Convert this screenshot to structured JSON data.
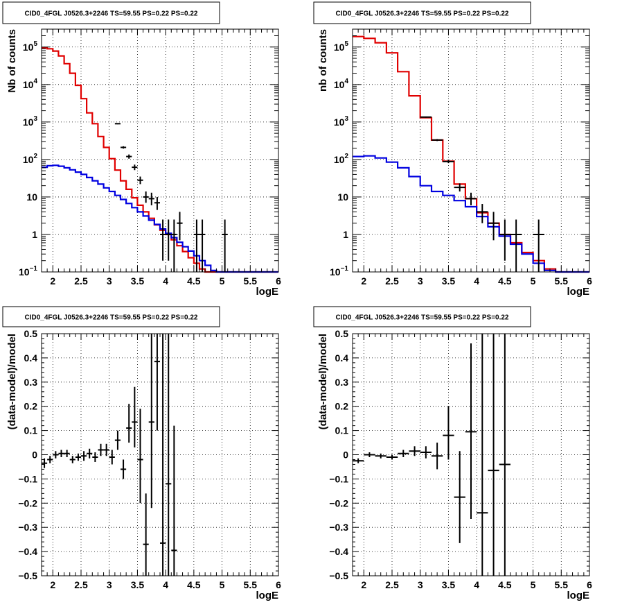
{
  "panels": [
    {
      "title": "CID0_4FGL J0526.3+2246 TS=59.55 PS=0.22 PS=0.22",
      "chart_data": {
        "type": "line",
        "title": "CID0_4FGL J0526.3+2246 TS=59.55 PS=0.22 PS=0.22",
        "xlabel": "logE",
        "ylabel": "Nb of counts",
        "xlim": [
          1.8,
          6.0
        ],
        "ylim": [
          0.1,
          300000
        ],
        "log_y": true,
        "grid": true,
        "xticks": [
          "2",
          "2.5",
          "3",
          "3.5",
          "4",
          "4.5",
          "5",
          "5.5",
          "6"
        ],
        "yticks": [
          {
            "v": 0.1,
            "base": "10",
            "exp": "−1"
          },
          {
            "v": 1,
            "label": "1"
          },
          {
            "v": 10,
            "label": "10"
          },
          {
            "v": 100,
            "base": "10",
            "exp": "2"
          },
          {
            "v": 1000,
            "base": "10",
            "exp": "3"
          },
          {
            "v": 10000,
            "base": "10",
            "exp": "4"
          },
          {
            "v": 100000,
            "base": "10",
            "exp": "5"
          }
        ],
        "bin_width": 0.1,
        "x": [
          1.85,
          1.95,
          2.05,
          2.15,
          2.25,
          2.35,
          2.45,
          2.55,
          2.65,
          2.75,
          2.85,
          2.95,
          3.05,
          3.15,
          3.25,
          3.35,
          3.45,
          3.55,
          3.65,
          3.75,
          3.85,
          3.95,
          4.05,
          4.15,
          4.25,
          4.35,
          4.45,
          4.55,
          4.65,
          4.75,
          4.85,
          4.95,
          5.05,
          5.15,
          5.25,
          5.35,
          5.45,
          5.55,
          5.65,
          5.75,
          5.85,
          5.95
        ],
        "series": [
          {
            "color": "#e00000",
            "kind": "hist",
            "values": [
              95000,
              90000,
              78000,
              58000,
              36000,
              20000,
              9500,
              4200,
              1750,
              900,
              410,
              210,
              105,
              52,
              27,
              16,
              9.5,
              6,
              4,
              2.7,
              1.8,
              1.3,
              1.0,
              0.72,
              0.5,
              0.35,
              0.24,
              0.17,
              0.12,
              0.1,
              0.1,
              0.1,
              0.1,
              0.1,
              0.1,
              0.1,
              0.1,
              0.1,
              0.1,
              0.1,
              0.1,
              0.1
            ]
          },
          {
            "color": "#0000e0",
            "kind": "hist",
            "values": [
              62,
              68,
              70,
              66,
              60,
              53,
              46,
              40,
              33,
              27,
              22,
              17.5,
              14,
              11,
              8.6,
              6.7,
              5.2,
              4.0,
              3.1,
              2.4,
              1.85,
              1.4,
              1.07,
              0.82,
              0.62,
              0.47,
              0.36,
              0.27,
              0.2,
              0.15,
              0.11,
              0.1,
              0.1,
              0.1,
              0.1,
              0.1,
              0.1,
              0.1,
              0.1,
              0.1,
              0.1,
              0.1
            ]
          },
          {
            "color": "#000000",
            "kind": "points",
            "points": [
              [
                3.15,
                900,
                870,
                930
              ],
              [
                3.25,
                210,
                195,
                225
              ],
              [
                3.35,
                120,
                105,
                136
              ],
              [
                3.45,
                62,
                52,
                73
              ],
              [
                3.55,
                28,
                22,
                35
              ],
              [
                3.65,
                10,
                7,
                14
              ],
              [
                3.75,
                9,
                6,
                13
              ],
              [
                3.85,
                7,
                4.5,
                10
              ],
              [
                3.95,
                1,
                0.2,
                2.5
              ],
              [
                4.05,
                1,
                0.2,
                2.5
              ],
              [
                4.15,
                1,
                0.1,
                2.5
              ],
              [
                4.25,
                2,
                0.7,
                4
              ],
              [
                4.55,
                1,
                0.1,
                2.5
              ],
              [
                4.65,
                1,
                0.1,
                2.5
              ],
              [
                5.05,
                1,
                0.1,
                2.5
              ]
            ]
          }
        ]
      }
    },
    {
      "title": "CID0_4FGL J0526.3+2246 TS=59.55 PS=0.22 PS=0.22",
      "chart_data": {
        "type": "line",
        "title": "CID0_4FGL J0526.3+2246 TS=59.55 PS=0.22 PS=0.22",
        "xlabel": "logE",
        "ylabel": "nb of counts",
        "xlim": [
          1.8,
          6.0
        ],
        "ylim": [
          0.1,
          300000
        ],
        "log_y": true,
        "grid": true,
        "xticks": [
          "2",
          "2.5",
          "3",
          "3.5",
          "4",
          "4.5",
          "5",
          "5.5",
          "6"
        ],
        "yticks": [
          {
            "v": 0.1,
            "base": "10",
            "exp": "−1"
          },
          {
            "v": 1,
            "label": "1"
          },
          {
            "v": 10,
            "label": "10"
          },
          {
            "v": 100,
            "base": "10",
            "exp": "2"
          },
          {
            "v": 1000,
            "base": "10",
            "exp": "3"
          },
          {
            "v": 10000,
            "base": "10",
            "exp": "4"
          },
          {
            "v": 100000,
            "base": "10",
            "exp": "5"
          }
        ],
        "bin_width": 0.2,
        "x": [
          1.9,
          2.1,
          2.3,
          2.5,
          2.7,
          2.9,
          3.1,
          3.3,
          3.5,
          3.7,
          3.9,
          4.1,
          4.3,
          4.5,
          4.7,
          4.9,
          5.1,
          5.3,
          5.5,
          5.7,
          5.9
        ],
        "series": [
          {
            "color": "#e00000",
            "kind": "hist",
            "values": [
              190000,
              170000,
              130000,
              70000,
              22000,
              5000,
              1300,
              330,
              90,
              22,
              9,
              3.8,
              2,
              1.0,
              0.6,
              0.33,
              0.2,
              0.12,
              0.1,
              0.1,
              0.1
            ]
          },
          {
            "color": "#0000e0",
            "kind": "hist",
            "values": [
              120,
              125,
              110,
              85,
              60,
              35,
              20,
              14,
              11,
              8,
              5.5,
              3.0,
              1.6,
              0.9,
              0.55,
              0.3,
              0.17,
              0.11,
              0.1,
              0.1,
              0.1
            ]
          },
          {
            "color": "#000000",
            "kind": "points",
            "points": [
              [
                3.1,
                1350,
                1300,
                1400
              ],
              [
                3.3,
                330,
                310,
                350
              ],
              [
                3.5,
                88,
                80,
                96
              ],
              [
                3.7,
                18,
                14,
                23
              ],
              [
                3.9,
                9,
                6,
                13
              ],
              [
                4.1,
                4,
                2,
                6.5
              ],
              [
                4.3,
                2,
                0.7,
                4
              ],
              [
                4.5,
                1,
                0.2,
                2.5
              ],
              [
                4.7,
                1,
                0.1,
                2.5
              ],
              [
                5.1,
                1,
                0.1,
                2.5
              ]
            ]
          }
        ]
      }
    },
    {
      "title": "CID0_4FGL J0526.3+2246 TS=59.55 PS=0.22 PS=0.22",
      "chart_data": {
        "type": "scatter",
        "title": "CID0_4FGL J0526.3+2246 TS=59.55 PS=0.22 PS=0.22",
        "xlabel": "logE",
        "ylabel": "(data-model)/model",
        "xlim": [
          1.8,
          6.0
        ],
        "ylim": [
          -0.5,
          0.5
        ],
        "log_y": false,
        "grid": true,
        "xticks": [
          "2",
          "2.5",
          "3",
          "3.5",
          "4",
          "4.5",
          "5",
          "5.5",
          "6"
        ],
        "yticks": [
          {
            "v": -0.5,
            "label": "−0.5"
          },
          {
            "v": -0.4,
            "label": "−0.4"
          },
          {
            "v": -0.3,
            "label": "−0.3"
          },
          {
            "v": -0.2,
            "label": "−0.2"
          },
          {
            "v": -0.1,
            "label": "−0.1"
          },
          {
            "v": 0,
            "label": "0"
          },
          {
            "v": 0.1,
            "label": "0.1"
          },
          {
            "v": 0.2,
            "label": "0.2"
          },
          {
            "v": 0.3,
            "label": "0.3"
          },
          {
            "v": 0.4,
            "label": "0.4"
          },
          {
            "v": 0.5,
            "label": "0.5"
          }
        ],
        "bin_width": 0.1,
        "series": [
          {
            "color": "#000000",
            "kind": "points",
            "points": [
              [
                1.85,
                -0.035,
                -0.055,
                -0.015
              ],
              [
                1.95,
                -0.02,
                -0.035,
                -0.005
              ],
              [
                2.05,
                0.0,
                -0.015,
                0.015
              ],
              [
                2.15,
                0.005,
                -0.01,
                0.02
              ],
              [
                2.25,
                0.005,
                -0.01,
                0.02
              ],
              [
                2.35,
                -0.02,
                -0.035,
                -0.005
              ],
              [
                2.45,
                -0.01,
                -0.025,
                0.005
              ],
              [
                2.55,
                -0.005,
                -0.025,
                0.015
              ],
              [
                2.65,
                0.005,
                -0.015,
                0.025
              ],
              [
                2.75,
                -0.01,
                -0.03,
                0.01
              ],
              [
                2.85,
                0.02,
                -0.005,
                0.045
              ],
              [
                2.95,
                0.02,
                -0.005,
                0.045
              ],
              [
                3.05,
                -0.01,
                -0.04,
                0.02
              ],
              [
                3.15,
                0.06,
                0.02,
                0.1
              ],
              [
                3.25,
                -0.06,
                -0.1,
                -0.02
              ],
              [
                3.35,
                0.11,
                0.05,
                0.21
              ],
              [
                3.45,
                0.135,
                0.03,
                0.28
              ],
              [
                3.55,
                -0.02,
                -0.2,
                0.19
              ],
              [
                3.65,
                -0.37,
                -0.5,
                -0.16
              ],
              [
                3.75,
                0.135,
                -0.22,
                0.5
              ],
              [
                3.85,
                0.385,
                0.1,
                0.5
              ],
              [
                3.95,
                -0.365,
                -0.5,
                0.5
              ],
              [
                4.05,
                -0.12,
                -0.5,
                0.5
              ],
              [
                4.15,
                -0.395,
                -0.5,
                0.12
              ]
            ]
          }
        ]
      }
    },
    {
      "title": "CID0_4FGL J0526.3+2246 TS=59.55 PS=0.22 PS=0.22",
      "chart_data": {
        "type": "scatter",
        "title": "CID0_4FGL J0526.3+2246 TS=59.55 PS=0.22 PS=0.22",
        "xlabel": "logE",
        "ylabel": "(data-model)/model",
        "xlim": [
          1.8,
          6.0
        ],
        "ylim": [
          -0.5,
          0.5
        ],
        "log_y": false,
        "grid": true,
        "xticks": [
          "2",
          "2.5",
          "3",
          "3.5",
          "4",
          "4.5",
          "5",
          "5.5",
          "6"
        ],
        "yticks": [
          {
            "v": -0.5,
            "label": "−0.5"
          },
          {
            "v": -0.4,
            "label": "−0.4"
          },
          {
            "v": -0.3,
            "label": "−0.3"
          },
          {
            "v": -0.2,
            "label": "−0.2"
          },
          {
            "v": -0.1,
            "label": "−0.1"
          },
          {
            "v": 0,
            "label": "0"
          },
          {
            "v": 0.1,
            "label": "0.1"
          },
          {
            "v": 0.2,
            "label": "0.2"
          },
          {
            "v": 0.3,
            "label": "0.3"
          },
          {
            "v": 0.4,
            "label": "0.4"
          },
          {
            "v": 0.5,
            "label": "0.5"
          }
        ],
        "bin_width": 0.2,
        "series": [
          {
            "color": "#000000",
            "kind": "points",
            "points": [
              [
                1.9,
                -0.025,
                -0.035,
                -0.015
              ],
              [
                2.1,
                0.0,
                -0.01,
                0.01
              ],
              [
                2.3,
                -0.005,
                -0.015,
                0.005
              ],
              [
                2.5,
                -0.01,
                -0.02,
                0.0
              ],
              [
                2.7,
                0.005,
                -0.01,
                0.02
              ],
              [
                2.9,
                0.015,
                -0.005,
                0.035
              ],
              [
                3.1,
                0.01,
                -0.015,
                0.035
              ],
              [
                3.3,
                -0.005,
                -0.06,
                0.05
              ],
              [
                3.5,
                0.08,
                -0.02,
                0.2
              ],
              [
                3.7,
                -0.175,
                -0.365,
                0.015
              ],
              [
                3.9,
                0.095,
                -0.265,
                0.46
              ],
              [
                4.1,
                -0.24,
                -0.5,
                0.5
              ],
              [
                4.3,
                -0.065,
                -0.5,
                0.5
              ],
              [
                4.5,
                -0.04,
                -0.5,
                0.5
              ]
            ]
          }
        ]
      }
    }
  ]
}
